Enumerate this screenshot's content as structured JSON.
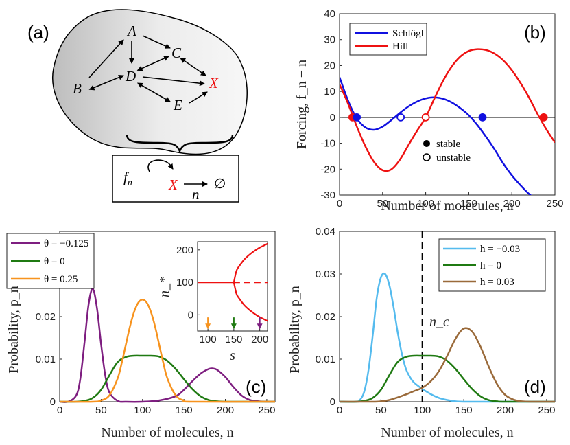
{
  "colors": {
    "purple": "#7e1e80",
    "green": "#1f7a12",
    "orange": "#f7931e",
    "blue": "#1010e0",
    "red": "#ee1111",
    "lightblue": "#55bbee",
    "brown": "#9a6a3a"
  },
  "panel_a": {
    "label": "(a)",
    "nodes": [
      "A",
      "B",
      "C",
      "D",
      "E",
      "X"
    ],
    "inset_forcing": "f",
    "inset_forcing_sub": "n",
    "inset_species": "X",
    "inset_rate": "n",
    "inset_sink": "∅"
  },
  "chart_data": [
    {
      "id": "b",
      "type": "line",
      "label": "(b)",
      "xlabel": "Number of molecules, n",
      "ylabel": "Forcing, f_n − n",
      "xlim": [
        0,
        250
      ],
      "ylim": [
        -30,
        40
      ],
      "xticks": [
        0,
        50,
        100,
        150,
        200,
        250
      ],
      "yticks": [
        -30,
        -20,
        -10,
        0,
        10,
        20,
        30,
        40
      ],
      "zero_line": true,
      "series": [
        {
          "name": "Schlögl",
          "color": "#1010e0",
          "x": [
            0,
            10,
            20,
            30,
            40,
            50,
            60,
            70,
            80,
            90,
            100,
            110,
            120,
            130,
            140,
            150,
            160,
            170,
            180,
            190,
            200,
            210,
            220,
            230
          ],
          "y": [
            15.5,
            6.4,
            -0.4,
            -3.9,
            -4.8,
            -3.6,
            -1.1,
            1.7,
            4.2,
            6.1,
            7.3,
            7.7,
            7.2,
            5.8,
            3.6,
            0.8,
            -3.0,
            -7.5,
            -12.4,
            -17.8,
            -22.4,
            -26.2,
            -29.6,
            -32.0
          ]
        },
        {
          "name": "Hill",
          "color": "#ee1111",
          "x": [
            0,
            10,
            20,
            30,
            40,
            50,
            60,
            70,
            80,
            90,
            100,
            110,
            120,
            130,
            140,
            150,
            160,
            170,
            180,
            190,
            200,
            210,
            220,
            230,
            240,
            250
          ],
          "y": [
            12.8,
            5.2,
            -3.5,
            -11.2,
            -17.2,
            -20.4,
            -20.1,
            -16.4,
            -10.7,
            -5.2,
            0.0,
            7.2,
            14.0,
            19.5,
            23.4,
            25.6,
            26.3,
            26.0,
            24.6,
            22.0,
            18.2,
            13.3,
            7.6,
            1.2,
            -4.6,
            -9.7
          ]
        }
      ],
      "fixed_points": [
        {
          "x": 15,
          "series": "Hill",
          "stable": true
        },
        {
          "x": 20,
          "series": "Schlögl",
          "stable": true
        },
        {
          "x": 71,
          "series": "Schlögl",
          "stable": false
        },
        {
          "x": 100,
          "series": "Hill",
          "stable": false
        },
        {
          "x": 166,
          "series": "Schlögl",
          "stable": true
        },
        {
          "x": 237,
          "series": "Hill",
          "stable": true
        }
      ],
      "marker_legend": [
        {
          "label": "stable",
          "filled": true
        },
        {
          "label": "unstable",
          "filled": false
        }
      ]
    },
    {
      "id": "c",
      "type": "line",
      "label": "(c)",
      "xlabel": "Number of molecules, n",
      "ylabel": "Probability, p_n",
      "xlim": [
        0,
        260
      ],
      "ylim": [
        0,
        0.04
      ],
      "xticks": [
        0,
        50,
        100,
        150,
        200,
        250
      ],
      "yticks": [
        0,
        0.01,
        0.02
      ],
      "series": [
        {
          "name": "θ = −0.125",
          "color": "#7e1e80",
          "x": [
            10,
            20,
            25,
            30,
            35,
            40,
            45,
            50,
            55,
            60,
            70,
            80,
            100,
            120,
            140,
            150,
            160,
            170,
            180,
            185,
            190,
            200,
            210,
            220,
            230,
            240,
            250
          ],
          "y": [
            0.0,
            0.0015,
            0.0055,
            0.014,
            0.023,
            0.0265,
            0.022,
            0.0135,
            0.0062,
            0.0022,
            0.0002,
            0.0,
            0.0,
            0.0003,
            0.0013,
            0.0028,
            0.0048,
            0.0066,
            0.0077,
            0.0078,
            0.0075,
            0.0058,
            0.0034,
            0.0014,
            0.0004,
            0.0001,
            0.0
          ]
        },
        {
          "name": "θ = 0",
          "color": "#1f7a12",
          "x": [
            20,
            30,
            40,
            50,
            60,
            70,
            80,
            90,
            100,
            110,
            120,
            130,
            140,
            150,
            160,
            170,
            180,
            190,
            200,
            210,
            220,
            230
          ],
          "y": [
            0.0,
            0.0002,
            0.0009,
            0.0028,
            0.0062,
            0.0093,
            0.0105,
            0.0108,
            0.0108,
            0.0108,
            0.0106,
            0.0096,
            0.0077,
            0.0053,
            0.003,
            0.0013,
            0.0004,
            0.0001,
            0.0,
            0.0,
            0.0,
            0.0
          ]
        },
        {
          "name": "θ = 0.25",
          "color": "#f7931e",
          "x": [
            40,
            50,
            60,
            70,
            75,
            80,
            85,
            90,
            95,
            100,
            105,
            110,
            115,
            120,
            125,
            130,
            140,
            150,
            160
          ],
          "y": [
            0.0,
            0.0003,
            0.0015,
            0.0055,
            0.0092,
            0.0135,
            0.0178,
            0.0212,
            0.0233,
            0.024,
            0.0233,
            0.0212,
            0.0178,
            0.0135,
            0.0092,
            0.0055,
            0.0015,
            0.0003,
            0.0
          ]
        }
      ],
      "inset": {
        "xlabel": "s",
        "ylabel": "n_*",
        "xlim": [
          80,
          215
        ],
        "ylim": [
          -50,
          225
        ],
        "xticks": [
          100,
          150,
          200
        ],
        "yticks": [
          0,
          100,
          200
        ],
        "bifurcation_s": 150,
        "base_level": 100,
        "upper_branch": {
          "s": [
            150,
            155,
            160,
            170,
            180,
            190,
            200,
            210,
            215
          ],
          "n": [
            100,
            135,
            149,
            170,
            185,
            197,
            207,
            215,
            219
          ]
        },
        "lower_branch": {
          "s": [
            150,
            155,
            160,
            170,
            180,
            190,
            200,
            210,
            215
          ],
          "n": [
            100,
            65,
            51,
            30,
            15,
            3,
            -7,
            -15,
            -19
          ]
        },
        "arrows": [
          {
            "s": 100,
            "color": "#f7931e"
          },
          {
            "s": 150,
            "color": "#1f7a12"
          },
          {
            "s": 200,
            "color": "#7e1e80"
          }
        ]
      }
    },
    {
      "id": "d",
      "type": "line",
      "label": "(d)",
      "xlabel": "Number of molecules, n",
      "ylabel": "Probability, p_n",
      "xlim": [
        0,
        260
      ],
      "ylim": [
        0,
        0.04
      ],
      "xticks": [
        0,
        50,
        100,
        150,
        200,
        250
      ],
      "yticks": [
        0,
        0.01,
        0.02,
        0.03,
        0.04
      ],
      "vline": {
        "x": 100,
        "label": "n_c"
      },
      "series": [
        {
          "name": "h = −0.03",
          "color": "#55bbee",
          "x": [
            20,
            25,
            30,
            35,
            40,
            45,
            50,
            55,
            60,
            65,
            70,
            75,
            80,
            85,
            90,
            100,
            110,
            120,
            130,
            140,
            150,
            160
          ],
          "y": [
            0.0,
            0.0005,
            0.0025,
            0.0075,
            0.0155,
            0.0245,
            0.0292,
            0.03,
            0.0275,
            0.0225,
            0.0165,
            0.0115,
            0.0078,
            0.0058,
            0.0045,
            0.003,
            0.0018,
            0.0009,
            0.0004,
            0.0001,
            0.0,
            0.0
          ]
        },
        {
          "name": "h = 0",
          "color": "#1f7a12",
          "x": [
            20,
            30,
            40,
            50,
            60,
            70,
            80,
            90,
            100,
            110,
            120,
            130,
            140,
            150,
            160,
            170,
            180,
            190,
            200
          ],
          "y": [
            0.0,
            0.0002,
            0.0009,
            0.0028,
            0.0062,
            0.0093,
            0.0105,
            0.0108,
            0.0108,
            0.0108,
            0.0106,
            0.0096,
            0.0077,
            0.0053,
            0.003,
            0.0013,
            0.0004,
            0.0001,
            0.0
          ]
        },
        {
          "name": "h = 0.03",
          "color": "#9a6a3a",
          "x": [
            40,
            50,
            60,
            70,
            80,
            90,
            100,
            110,
            120,
            130,
            140,
            150,
            160,
            170,
            180,
            190,
            200,
            210,
            220,
            230
          ],
          "y": [
            0.0,
            0.0001,
            0.0004,
            0.001,
            0.0017,
            0.0025,
            0.0033,
            0.0048,
            0.0072,
            0.0108,
            0.0148,
            0.0172,
            0.0165,
            0.013,
            0.0083,
            0.0042,
            0.0016,
            0.0005,
            0.0001,
            0.0
          ]
        }
      ]
    }
  ]
}
